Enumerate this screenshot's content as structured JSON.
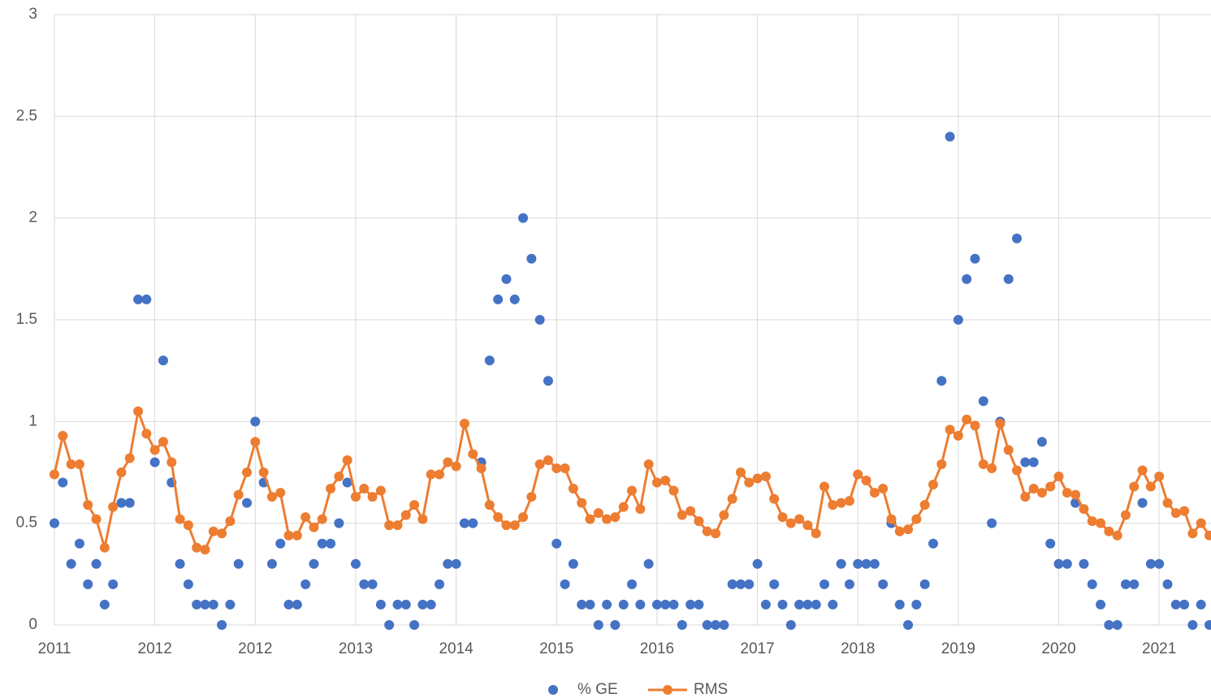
{
  "chart_data": {
    "type": "line",
    "categories": [
      "2011",
      null,
      null,
      null,
      null,
      null,
      null,
      null,
      null,
      null,
      null,
      null,
      "2012",
      null,
      null,
      null,
      null,
      null,
      null,
      null,
      null,
      null,
      null,
      null,
      "2012",
      null,
      null,
      null,
      null,
      null,
      null,
      null,
      null,
      null,
      null,
      null,
      "2013",
      null,
      null,
      null,
      null,
      null,
      null,
      null,
      null,
      null,
      null,
      null,
      "2014",
      null,
      null,
      null,
      null,
      null,
      null,
      null,
      null,
      null,
      null,
      null,
      "2015",
      null,
      null,
      null,
      null,
      null,
      null,
      null,
      null,
      null,
      null,
      null,
      "2016",
      null,
      null,
      null,
      null,
      null,
      null,
      null,
      null,
      null,
      null,
      null,
      "2017",
      null,
      null,
      null,
      null,
      null,
      null,
      null,
      null,
      null,
      null,
      null,
      "2018",
      null,
      null,
      null,
      null,
      null,
      null,
      null,
      null,
      null,
      null,
      null,
      "2019",
      null,
      null,
      null,
      null,
      null,
      null,
      null,
      null,
      null,
      null,
      null,
      "2020",
      null,
      null,
      null,
      null,
      null,
      null,
      null,
      null,
      null,
      null,
      null,
      "2021",
      null,
      null,
      null,
      null,
      null,
      null
    ],
    "series": [
      {
        "name": "% GE",
        "color": "#4472c4",
        "show_line": false,
        "values": [
          0.5,
          0.7,
          0.3,
          0.4,
          0.2,
          0.3,
          0.1,
          0.2,
          0.6,
          0.6,
          1.6,
          1.6,
          0.8,
          1.3,
          0.7,
          0.3,
          0.2,
          0.1,
          0.1,
          0.1,
          0,
          0.1,
          0.3,
          0.6,
          1.0,
          0.7,
          0.3,
          0.4,
          0.1,
          0.1,
          0.2,
          0.3,
          0.4,
          0.4,
          0.5,
          0.7,
          0.3,
          0.2,
          0.2,
          0.1,
          0,
          0.1,
          0.1,
          0,
          0.1,
          0.1,
          0.2,
          0.3,
          0.3,
          0.5,
          0.5,
          0.8,
          1.3,
          1.6,
          1.7,
          1.6,
          2.0,
          1.8,
          1.5,
          1.2,
          0.4,
          0.2,
          0.3,
          0.1,
          0.1,
          0,
          0.1,
          0,
          0.1,
          0.2,
          0.1,
          0.3,
          0.1,
          0.1,
          0.1,
          0,
          0.1,
          0.1,
          0,
          0,
          0,
          0.2,
          0.2,
          0.2,
          0.3,
          0.1,
          0.2,
          0.1,
          0,
          0.1,
          0.1,
          0.1,
          0.2,
          0.1,
          0.3,
          0.2,
          0.3,
          0.3,
          0.3,
          0.2,
          0.5,
          0.1,
          0,
          0.1,
          0.2,
          0.4,
          1.2,
          2.4,
          1.5,
          1.7,
          1.8,
          1.1,
          0.5,
          1.0,
          1.7,
          1.9,
          0.8,
          0.8,
          0.9,
          0.4,
          0.3,
          0.3,
          0.6,
          0.3,
          0.2,
          0.1,
          0,
          0,
          0.2,
          0.2,
          0.6,
          0.3,
          0.3,
          0.2,
          0.1,
          0.1,
          0,
          0.1,
          0
        ]
      },
      {
        "name": "RMS",
        "color": "#ed7d31",
        "show_line": true,
        "values": [
          0.74,
          0.93,
          0.79,
          0.79,
          0.59,
          0.52,
          0.38,
          0.58,
          0.75,
          0.82,
          1.05,
          0.94,
          0.86,
          0.9,
          0.8,
          0.52,
          0.49,
          0.38,
          0.37,
          0.46,
          0.45,
          0.51,
          0.64,
          0.75,
          0.9,
          0.75,
          0.63,
          0.65,
          0.44,
          0.44,
          0.53,
          0.48,
          0.52,
          0.67,
          0.73,
          0.81,
          0.63,
          0.67,
          0.63,
          0.66,
          0.49,
          0.49,
          0.54,
          0.59,
          0.52,
          0.74,
          0.74,
          0.8,
          0.78,
          0.99,
          0.84,
          0.77,
          0.59,
          0.53,
          0.49,
          0.49,
          0.53,
          0.63,
          0.79,
          0.81,
          0.77,
          0.77,
          0.67,
          0.6,
          0.52,
          0.55,
          0.52,
          0.53,
          0.58,
          0.66,
          0.57,
          0.79,
          0.7,
          0.71,
          0.66,
          0.54,
          0.56,
          0.51,
          0.46,
          0.45,
          0.54,
          0.62,
          0.75,
          0.7,
          0.72,
          0.73,
          0.62,
          0.53,
          0.5,
          0.52,
          0.49,
          0.45,
          0.68,
          0.59,
          0.6,
          0.61,
          0.74,
          0.71,
          0.65,
          0.67,
          0.52,
          0.46,
          0.47,
          0.52,
          0.59,
          0.69,
          0.79,
          0.96,
          0.93,
          1.01,
          0.98,
          0.79,
          0.77,
          0.99,
          0.86,
          0.76,
          0.63,
          0.67,
          0.65,
          0.68,
          0.73,
          0.65,
          0.64,
          0.57,
          0.51,
          0.5,
          0.46,
          0.44,
          0.54,
          0.68,
          0.76,
          0.68,
          0.73,
          0.6,
          0.55,
          0.56,
          0.45,
          0.5,
          0.44
        ]
      }
    ],
    "ylim": [
      0,
      3
    ],
    "yticks": [
      0,
      0.5,
      1,
      1.5,
      2,
      2.5,
      3
    ],
    "grid": true,
    "legend": "bottom"
  }
}
